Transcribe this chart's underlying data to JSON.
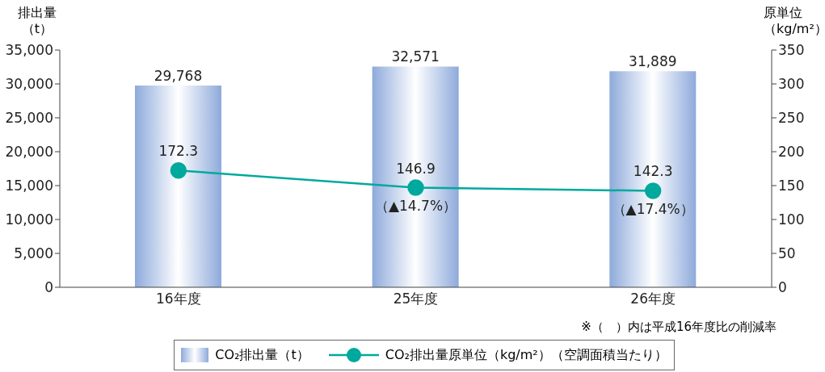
{
  "chart_data": {
    "type": "bar",
    "categories": [
      "16年度",
      "25年度",
      "26年度"
    ],
    "ylabel": "排出量（t）",
    "y2label": "原単位（kg/m²）",
    "ylim": [
      0,
      35000
    ],
    "yticks": [
      {
        "value": 0,
        "label": "0"
      },
      {
        "value": 5000,
        "label": "5,000"
      },
      {
        "value": 10000,
        "label": "10,000"
      },
      {
        "value": 15000,
        "label": "15,000"
      },
      {
        "value": 20000,
        "label": "20,000"
      },
      {
        "value": 25000,
        "label": "25,000"
      },
      {
        "value": 30000,
        "label": "30,000"
      },
      {
        "value": 35000,
        "label": "35,000"
      }
    ],
    "y2lim": [
      0,
      350
    ],
    "y2ticks": [
      0,
      50,
      100,
      150,
      200,
      250,
      300,
      350
    ],
    "series": [
      {
        "name": "CO₂排出量（t）",
        "color": "#8eaadb",
        "values": [
          29768,
          32571,
          31889
        ],
        "value_labels": [
          "29,768",
          "32,571",
          "31,889"
        ]
      },
      {
        "name": "CO₂排出量原単位（kg/m²）（空調面積当たり）",
        "type": "line",
        "axis": "y2",
        "color": "#00a99d",
        "marker": "circle",
        "values": [
          172.3,
          146.9,
          142.3
        ]
      }
    ],
    "data_labels": true,
    "legend": "bottom",
    "grid": false,
    "annotations": [
      "（▲14.7%）",
      "（▲17.4%）",
      "※（　）内は平成16年度比の削減率"
    ]
  }
}
